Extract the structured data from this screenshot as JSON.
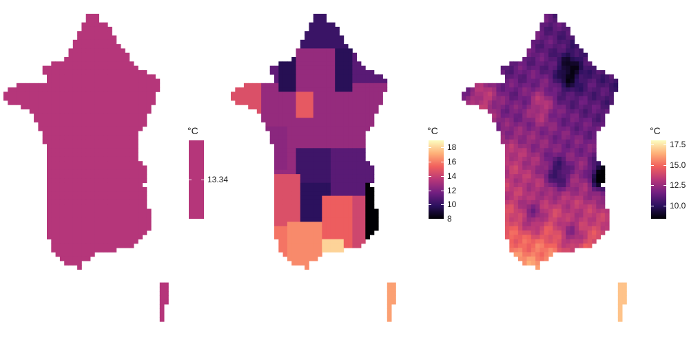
{
  "panels": [
    {
      "id": "uniform",
      "legend": {
        "title": "°C",
        "min": 13.34,
        "max": 13.34,
        "ticks": [
          13.34
        ],
        "tick_labels": [
          "13.34"
        ],
        "scale": "single-value"
      }
    },
    {
      "id": "regional",
      "legend": {
        "title": "°C",
        "min": 8,
        "max": 19,
        "ticks": [
          8,
          10,
          12,
          14,
          16,
          18
        ],
        "tick_labels": [
          "8",
          "10",
          "12",
          "14",
          "16",
          "18"
        ],
        "scale": "continuous"
      }
    },
    {
      "id": "gridded",
      "legend": {
        "title": "°C",
        "min": 8.4,
        "max": 18.0,
        "ticks": [
          10.0,
          12.5,
          15.0,
          17.5
        ],
        "tick_labels": [
          "10.0",
          "12.5",
          "15.0",
          "17.5"
        ],
        "scale": "continuous"
      }
    }
  ],
  "colormap": {
    "name": "magma",
    "stops": [
      "#000004",
      "#2c115f",
      "#721f81",
      "#b73779",
      "#f1605d",
      "#feb078",
      "#fcfdbf"
    ],
    "uniform_fill": "#b5367a"
  }
}
